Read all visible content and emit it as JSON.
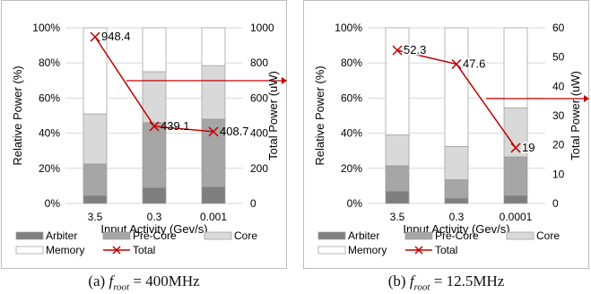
{
  "colors": {
    "arbiter": "#7f7f7f",
    "pre_core": "#a6a6a6",
    "core": "#d9d9d9",
    "memory": "#ffffff",
    "total": "#c00000",
    "grid": "#d9d9d9",
    "bar_border": "#999999"
  },
  "chart_data": [
    {
      "type": "bar",
      "stacked": true,
      "categories": [
        "3.5",
        "0.3",
        "0.001"
      ],
      "series": [
        {
          "name": "Arbiter",
          "values": [
            4.5,
            9,
            9.5
          ]
        },
        {
          "name": "Pre-Core",
          "values": [
            18,
            37,
            38.5
          ]
        },
        {
          "name": "Core",
          "values": [
            28.5,
            29,
            30.5
          ]
        },
        {
          "name": "Memory",
          "values": [
            49,
            25,
            21.5
          ]
        }
      ],
      "line_series": {
        "name": "Total",
        "axis": "right",
        "values": [
          948.4,
          439.1,
          408.7
        ],
        "labels": [
          "948.4",
          "439.1",
          "408.7"
        ]
      },
      "xlabel": "Input Activity (Gev/s)",
      "ylabel": "Relative Power (%)",
      "y2label": "Total Power (uW)",
      "ylim": [
        0,
        100
      ],
      "y2lim": [
        0,
        1000
      ],
      "yticks": [
        "0%",
        "20%",
        "40%",
        "60%",
        "80%",
        "100%"
      ],
      "y2ticks": [
        "0",
        "200",
        "400",
        "600",
        "800",
        "1000"
      ],
      "legend": [
        "Arbiter",
        "Pre-Core",
        "Core",
        "Memory",
        "Total"
      ],
      "legend_position": "bottom",
      "grid": true
    },
    {
      "type": "bar",
      "stacked": true,
      "categories": [
        "3.5",
        "0.3",
        "0.0001"
      ],
      "series": [
        {
          "name": "Arbiter",
          "values": [
            7,
            3,
            4.5
          ]
        },
        {
          "name": "Pre-Core",
          "values": [
            14.5,
            10.5,
            22
          ]
        },
        {
          "name": "Core",
          "values": [
            17.5,
            19,
            28
          ]
        },
        {
          "name": "Memory",
          "values": [
            61,
            67.5,
            45.5
          ]
        }
      ],
      "line_series": {
        "name": "Total",
        "axis": "right",
        "values": [
          52.3,
          47.6,
          19
        ],
        "labels": [
          "52.3",
          "47.6",
          "19"
        ]
      },
      "xlabel": "Input Activity (Gev/s)",
      "ylabel": "Relative Power (%)",
      "y2label": "Total Power (uW)",
      "ylim": [
        0,
        100
      ],
      "y2lim": [
        0,
        60
      ],
      "yticks": [
        "0%",
        "20%",
        "40%",
        "60%",
        "80%",
        "100%"
      ],
      "y2ticks": [
        "0",
        "10",
        "20",
        "30",
        "40",
        "50",
        "60"
      ],
      "legend": [
        "Arbiter",
        "Pre-Core",
        "Core",
        "Memory",
        "Total"
      ],
      "legend_position": "bottom",
      "grid": true
    }
  ],
  "captions": [
    {
      "label": "(a)",
      "symbol": "f",
      "subscript": "root",
      "value": "= 400MHz"
    },
    {
      "label": "(b)",
      "symbol": "f",
      "subscript": "root",
      "value": "= 12.5MHz"
    }
  ]
}
